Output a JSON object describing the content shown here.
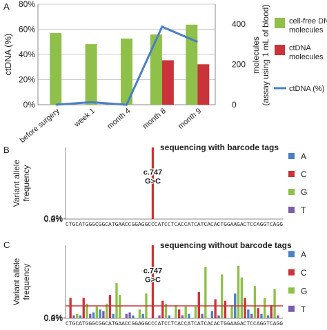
{
  "chart_data": [
    {
      "panel": "A",
      "type": "bar+line",
      "categories": [
        "before surgery",
        "week 1",
        "month 4",
        "month 8",
        "month 9"
      ],
      "ylabel_left": "ctDNA (%)",
      "ylabel_right_line1": "molecules",
      "ylabel_right_line2": "(assay using 1 mL of blood)",
      "left_ticks": [
        "0%",
        "20%",
        "40%",
        "60%",
        "80%"
      ],
      "right_ticks": [
        "0",
        "200",
        "400"
      ],
      "ylim_left": [
        0,
        80
      ],
      "ylim_right": [
        0,
        500
      ],
      "series": [
        {
          "name": "cell-free DNA molecules",
          "axis": "right",
          "kind": "bar",
          "color": "#8fc04a",
          "values": [
            356,
            301,
            329,
            349,
            398
          ]
        },
        {
          "name": "ctDNA molecules",
          "axis": "right",
          "kind": "bar",
          "color": "#c9343a",
          "values": [
            0,
            0,
            0,
            221,
            201
          ]
        },
        {
          "name": "ctDNA (%)",
          "axis": "left",
          "kind": "line",
          "color": "#4a7fc4",
          "values": [
            0,
            2,
            0,
            62,
            50
          ]
        }
      ],
      "legend": [
        {
          "line1": "cell-free DNA",
          "line2": "molecules",
          "color": "#8fc04a",
          "kind": "box"
        },
        {
          "line1": "ctDNA",
          "line2": "molecules",
          "color": "#c9343a",
          "kind": "box"
        },
        {
          "line1": "ctDNA (%)",
          "line2": "",
          "color": "#4a7fc4",
          "kind": "line"
        }
      ]
    },
    {
      "panel": "B",
      "type": "bar",
      "title": "sequencing with barcode tags",
      "ylabel_line1": "Variant allele",
      "ylabel_line2": "frequency",
      "y_ticks": [
        "0.0%",
        "0.2%",
        "0.4%"
      ],
      "ylim": [
        0,
        0.5
      ],
      "sequence": "CTGCATGGGCGGCATGAACCGGAGGCCCATCCTCACCATCATCACACTGGAAGACTCCAGGTCAGG",
      "annotation_line1": "c.747",
      "annotation_line2": "G>C",
      "series": [
        {
          "name": "C",
          "color": "#c9343a",
          "points": [
            {
              "position": 26,
              "value": 0.5
            }
          ]
        }
      ],
      "legend": [
        "A",
        "C",
        "G",
        "T"
      ]
    },
    {
      "panel": "C",
      "type": "bar",
      "title": "sequencing without barcode tags",
      "ylabel_line1": "Variant allele",
      "ylabel_line2": "frequency",
      "y_ticks": [
        "0.0%",
        "0.2%",
        "0.4%"
      ],
      "ylim": [
        0,
        0.5
      ],
      "threshold": 0.085,
      "sequence": "CTGCATGGGCGGCATGAACCGGAGGCCCATCCTCACCATCATCACACTGGAAGACTCCAGGTCAGG",
      "annotation_line1": "c.747",
      "annotation_line2": "G>C",
      "series": [
        {
          "name": "A",
          "color": "#4a7fc4",
          "points": [
            {
              "position": 4,
              "value": 0.02
            },
            {
              "position": 8,
              "value": 0.04
            },
            {
              "position": 10,
              "value": 0.06
            },
            {
              "position": 14,
              "value": 0.03
            },
            {
              "position": 20,
              "value": 0.02
            },
            {
              "position": 23,
              "value": 0.03
            },
            {
              "position": 31,
              "value": 0.02
            },
            {
              "position": 37,
              "value": 0.03
            },
            {
              "position": 44,
              "value": 0.05
            },
            {
              "position": 51,
              "value": 0.17
            },
            {
              "position": 55,
              "value": 0.06
            },
            {
              "position": 59,
              "value": 0.03
            },
            {
              "position": 61,
              "value": 0.02
            }
          ]
        },
        {
          "name": "C",
          "color": "#c9343a",
          "points": [
            {
              "position": 1,
              "value": 0.14
            },
            {
              "position": 5,
              "value": 0.14
            },
            {
              "position": 13,
              "value": 0.16
            },
            {
              "position": 26,
              "value": 0.5
            },
            {
              "position": 29,
              "value": 0.12
            },
            {
              "position": 34,
              "value": 0.06
            },
            {
              "position": 40,
              "value": 0.18
            },
            {
              "position": 45,
              "value": 0.13
            },
            {
              "position": 48,
              "value": 0.12
            },
            {
              "position": 54,
              "value": 0.14
            },
            {
              "position": 58,
              "value": 0.07
            },
            {
              "position": 62,
              "value": 0.09
            }
          ]
        },
        {
          "name": "G",
          "color": "#8fc04a",
          "points": [
            {
              "position": 3,
              "value": 0.03
            },
            {
              "position": 6,
              "value": 0.1
            },
            {
              "position": 9,
              "value": 0.08
            },
            {
              "position": 12,
              "value": 0.1
            },
            {
              "position": 15,
              "value": 0.24
            },
            {
              "position": 16,
              "value": 0.16
            },
            {
              "position": 22,
              "value": 0.06
            },
            {
              "position": 24,
              "value": 0.17
            },
            {
              "position": 30,
              "value": 0.1
            },
            {
              "position": 33,
              "value": 0.09
            },
            {
              "position": 36,
              "value": 0.08
            },
            {
              "position": 39,
              "value": 0.08
            },
            {
              "position": 42,
              "value": 0.35
            },
            {
              "position": 47,
              "value": 0.3
            },
            {
              "position": 50,
              "value": 0.09
            },
            {
              "position": 52,
              "value": 0.36
            },
            {
              "position": 53,
              "value": 0.28
            },
            {
              "position": 57,
              "value": 0.22
            },
            {
              "position": 60,
              "value": 0.14
            },
            {
              "position": 63,
              "value": 0.2
            }
          ]
        },
        {
          "name": "T",
          "color": "#7a5fa7",
          "points": [
            {
              "position": 2,
              "value": 0.02
            },
            {
              "position": 7,
              "value": 0.03
            },
            {
              "position": 11,
              "value": 0.05
            },
            {
              "position": 18,
              "value": 0.03
            },
            {
              "position": 19,
              "value": 0.04
            },
            {
              "position": 28,
              "value": 0.02
            },
            {
              "position": 35,
              "value": 0.02
            },
            {
              "position": 41,
              "value": 0.03
            },
            {
              "position": 46,
              "value": 0.02
            },
            {
              "position": 56,
              "value": 0.03
            },
            {
              "position": 64,
              "value": 0.02
            }
          ]
        }
      ],
      "legend": [
        "A",
        "C",
        "G",
        "T"
      ]
    }
  ],
  "panel_labels": [
    "A",
    "B",
    "C"
  ],
  "legend_colors": {
    "A": "#4a7fc4",
    "C": "#c9343a",
    "G": "#8fc04a",
    "T": "#7a5fa7"
  },
  "threshold_color": "#c9343a"
}
